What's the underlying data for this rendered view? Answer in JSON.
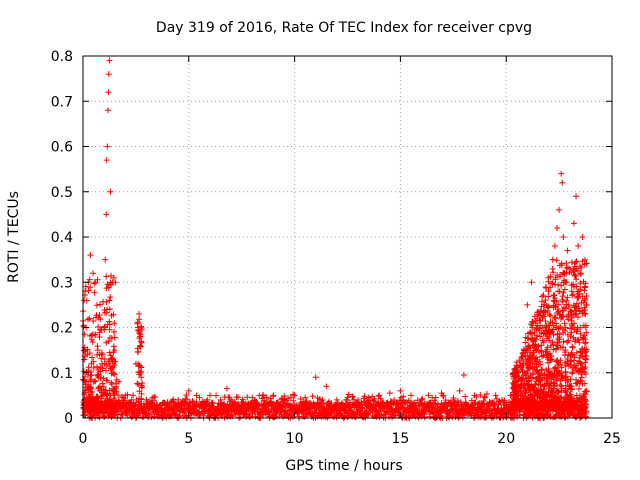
{
  "chart_data": {
    "type": "scatter",
    "title": "Day 319 of 2016, Rate Of TEC Index for receiver cpvg",
    "xlabel": "GPS time / hours",
    "ylabel": "ROTI / TECUs",
    "xlim": [
      0,
      25
    ],
    "ylim": [
      0,
      0.8
    ],
    "xticks": [
      0,
      5,
      10,
      15,
      20,
      25
    ],
    "xtick_labels": [
      "0",
      "5",
      "10",
      "15",
      "20",
      "25"
    ],
    "yticks": [
      0,
      0.1,
      0.2,
      0.3,
      0.4,
      0.5,
      0.6,
      0.7,
      0.8
    ],
    "ytick_labels": [
      "0",
      "0.1",
      "0.2",
      "0.3",
      "0.4",
      "0.5",
      "0.6",
      "0.7",
      "0.8"
    ],
    "grid": true,
    "marker": "+",
    "series": [
      {
        "name": "ROTI",
        "color": "#ff0000",
        "x": [
          0.05,
          0.1,
          0.15,
          0.2,
          0.25,
          0.3,
          0.35,
          0.4,
          0.5,
          0.6,
          0.7,
          0.8,
          0.9,
          1.0,
          1.05,
          1.1,
          1.12,
          1.15,
          1.18,
          1.2,
          1.22,
          1.25,
          1.3,
          1.4,
          1.5,
          1.7,
          2.0,
          2.3,
          2.5,
          2.6,
          2.65,
          2.7,
          2.75,
          3.0,
          3.5,
          4.0,
          4.5,
          5.0,
          5.5,
          6.0,
          6.5,
          6.8,
          7.0,
          7.5,
          8.0,
          8.5,
          9.0,
          9.5,
          10.0,
          10.5,
          11.0,
          11.2,
          11.5,
          12.0,
          12.5,
          13.0,
          13.5,
          14.0,
          14.5,
          15.0,
          15.5,
          16.0,
          16.5,
          17.0,
          17.5,
          17.8,
          18.0,
          18.5,
          19.0,
          19.5,
          19.8,
          20.0,
          20.2,
          20.4,
          20.6,
          20.8,
          21.0,
          21.2,
          21.4,
          21.6,
          21.8,
          22.0,
          22.2,
          22.3,
          22.4,
          22.5,
          22.6,
          22.65,
          22.7,
          22.8,
          22.9,
          23.0,
          23.1,
          23.2,
          23.3,
          23.4,
          23.5,
          23.6,
          23.7,
          23.8
        ],
        "y": [
          0.26,
          0.28,
          0.2,
          0.14,
          0.3,
          0.22,
          0.36,
          0.12,
          0.08,
          0.3,
          0.15,
          0.06,
          0.12,
          0.2,
          0.35,
          0.45,
          0.57,
          0.6,
          0.68,
          0.72,
          0.76,
          0.79,
          0.5,
          0.3,
          0.15,
          0.08,
          0.05,
          0.04,
          0.12,
          0.2,
          0.23,
          0.18,
          0.09,
          0.04,
          0.03,
          0.035,
          0.04,
          0.06,
          0.045,
          0.05,
          0.04,
          0.065,
          0.04,
          0.035,
          0.045,
          0.05,
          0.05,
          0.04,
          0.05,
          0.045,
          0.09,
          0.04,
          0.07,
          0.04,
          0.045,
          0.04,
          0.045,
          0.05,
          0.055,
          0.06,
          0.05,
          0.04,
          0.045,
          0.05,
          0.04,
          0.06,
          0.095,
          0.05,
          0.045,
          0.05,
          0.04,
          0.03,
          0.05,
          0.06,
          0.09,
          0.12,
          0.25,
          0.3,
          0.21,
          0.18,
          0.25,
          0.28,
          0.35,
          0.38,
          0.42,
          0.46,
          0.54,
          0.52,
          0.4,
          0.3,
          0.37,
          0.33,
          0.28,
          0.43,
          0.49,
          0.38,
          0.32,
          0.4,
          0.26,
          0.06
        ]
      }
    ],
    "dense_band": {
      "description_hidden": true,
      "x_start": 0.0,
      "x_end": 23.8,
      "base_min": 0.0,
      "base_max": 0.035
    }
  }
}
